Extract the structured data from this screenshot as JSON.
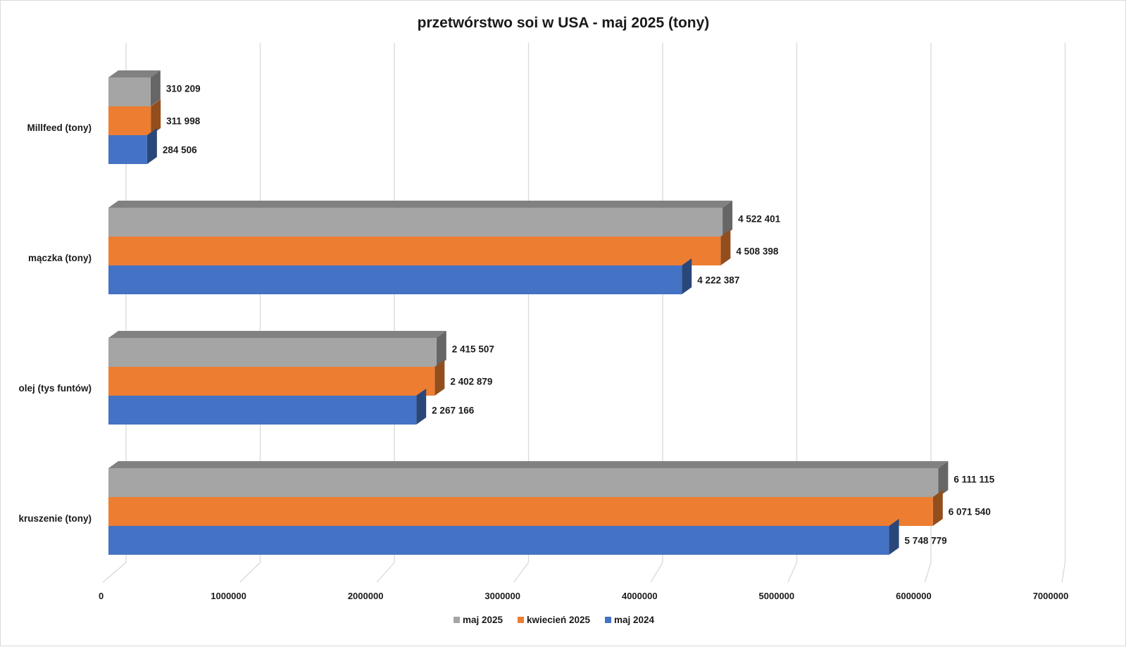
{
  "chart_data": {
    "type": "bar",
    "orientation": "horizontal",
    "style": "3d-clustered",
    "title": "przetwórstwo soi w USA - maj 2025 (tony)",
    "xlabel": "",
    "ylabel": "",
    "xlim": [
      0,
      7000000
    ],
    "xticks": [
      0,
      1000000,
      2000000,
      3000000,
      4000000,
      5000000,
      6000000,
      7000000
    ],
    "xtick_labels": [
      "0",
      "1000000",
      "2000000",
      "3000000",
      "4000000",
      "5000000",
      "6000000",
      "7000000"
    ],
    "grid": true,
    "legend_position": "bottom",
    "categories_top_to_bottom": [
      "Millfeed (tony)",
      "mączka (tony)",
      "olej (tys funtów)",
      "kruszenie (tony)"
    ],
    "series": [
      {
        "name": "maj 2025",
        "color": "#a5a5a5",
        "values": [
          310209,
          4522401,
          2415507,
          6111115
        ],
        "labels": [
          "310 209",
          "4 522 401",
          "2 415 507",
          "6 111 115"
        ]
      },
      {
        "name": "kwiecień 2025",
        "color": "#ed7d31",
        "values": [
          311998,
          4508398,
          2402879,
          6071540
        ],
        "labels": [
          "311 998",
          "4 508 398",
          "2 402 879",
          "6 071 540"
        ]
      },
      {
        "name": "maj 2024",
        "color": "#4472c4",
        "values": [
          284506,
          4222387,
          2267166,
          5748779
        ],
        "labels": [
          "284 506",
          "4 222 387",
          "2 267 166",
          "5 748 779"
        ]
      }
    ]
  }
}
